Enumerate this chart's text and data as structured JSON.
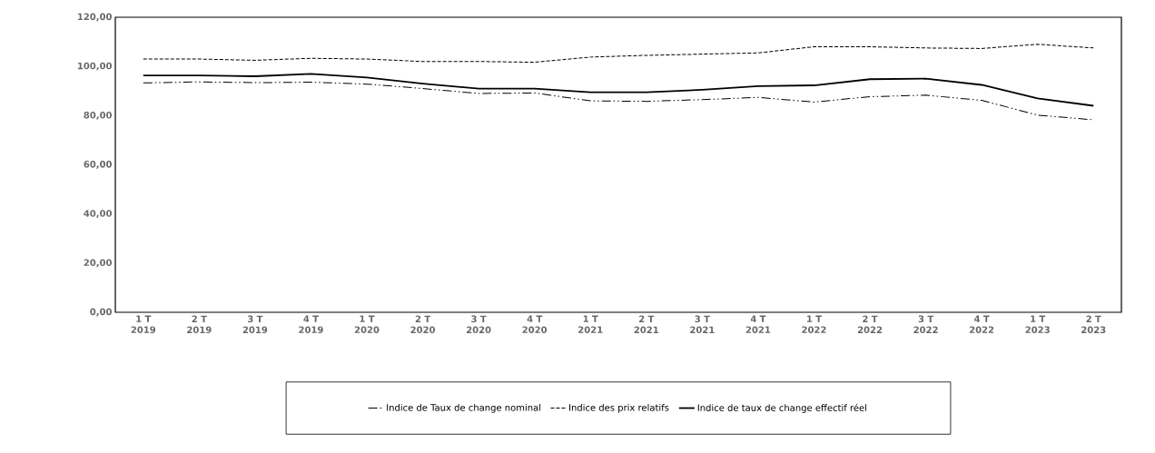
{
  "chart_data": {
    "type": "line",
    "categories": [
      "1 T 2019",
      "2 T 2019",
      "3 T 2019",
      "4 T 2019",
      "1 T 2020",
      "2 T 2020",
      "3 T 2020",
      "4 T 2020",
      "1 T 2021",
      "2 T 2021",
      "3 T 2021",
      "4 T 2021",
      "1 T 2022",
      "2 T 2022",
      "3 T 2022",
      "4 T 2022",
      "1 T 2023",
      "2 T 2023"
    ],
    "series": [
      {
        "name": "Indice de Taux de change nominal",
        "color": "#000000",
        "line_style": "dashdot",
        "values": [
          93.3,
          93.7,
          93.4,
          93.6,
          92.8,
          91,
          89,
          89.2,
          86,
          85.8,
          86.5,
          87.4,
          85.5,
          87.7,
          88.3,
          86.2,
          80.2,
          78.3
        ]
      },
      {
        "name": "Indice des prix relatifs",
        "color": "#000000",
        "line_style": "dashed",
        "values": [
          103,
          103,
          102.5,
          103.3,
          103,
          102,
          102,
          101.7,
          103.8,
          104.5,
          105,
          105.5,
          108,
          108,
          107.5,
          107.3,
          109,
          107.5
        ]
      },
      {
        "name": "Indice de taux de change effectif réel",
        "color": "#000000",
        "line_style": "solid",
        "values": [
          96.3,
          96.3,
          96,
          97,
          95.5,
          93,
          91,
          91,
          89.5,
          89.5,
          90.5,
          92,
          92.3,
          94.8,
          95,
          92.5,
          87,
          84
        ]
      }
    ],
    "ylim": [
      0,
      120
    ],
    "yticks": [
      {
        "value": 0,
        "label": "0,00"
      },
      {
        "value": 20,
        "label": "20,00"
      },
      {
        "value": 40,
        "label": "40,00"
      },
      {
        "value": 60,
        "label": "60,00"
      },
      {
        "value": 80,
        "label": "80,00"
      },
      {
        "value": 100,
        "label": "100,00"
      },
      {
        "value": 120,
        "label": "120,00"
      }
    ],
    "grid": false,
    "legend": "bottom",
    "marker": "none"
  }
}
